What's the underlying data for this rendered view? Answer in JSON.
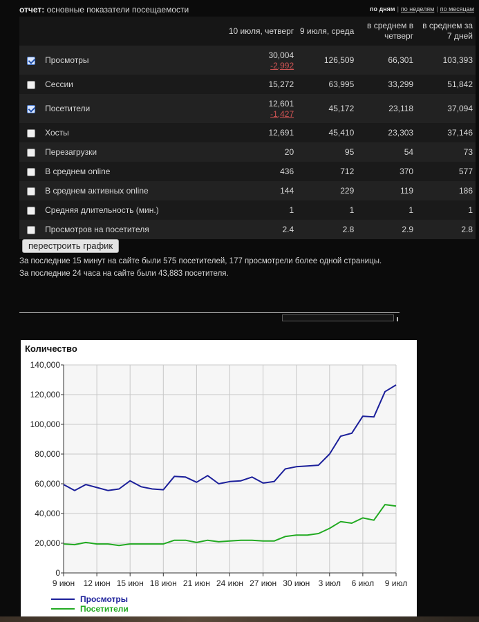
{
  "header": {
    "report_label": "отчет:",
    "report_title": "основные показатели посещаемости",
    "periods": [
      {
        "label": "по дням",
        "current": true
      },
      {
        "label": "по неделям",
        "current": false
      },
      {
        "label": "по месяцам",
        "current": false
      }
    ]
  },
  "table": {
    "columns": [
      "10 июля, четверг",
      "9 июля, среда",
      "в среднем в четверг",
      "в среднем за 7 дней"
    ],
    "rows": [
      {
        "label": "Просмотры",
        "checked": true,
        "values": [
          "30,004",
          "126,509",
          "66,301",
          "103,393"
        ],
        "delta": "-2,992"
      },
      {
        "label": "Сессии",
        "checked": false,
        "values": [
          "15,272",
          "63,995",
          "33,299",
          "51,842"
        ]
      },
      {
        "label": "Посетители",
        "checked": true,
        "values": [
          "12,601",
          "45,172",
          "23,118",
          "37,094"
        ],
        "delta": "-1,427"
      },
      {
        "label": "Хосты",
        "checked": false,
        "values": [
          "12,691",
          "45,410",
          "23,303",
          "37,146"
        ]
      },
      {
        "label": "Перезагрузки",
        "checked": false,
        "values": [
          "20",
          "95",
          "54",
          "73"
        ]
      },
      {
        "label": "В среднем online",
        "checked": false,
        "values": [
          "436",
          "712",
          "370",
          "577"
        ]
      },
      {
        "label": "В среднем активных online",
        "checked": false,
        "values": [
          "144",
          "229",
          "119",
          "186"
        ]
      },
      {
        "label": "Средняя длительность (мин.)",
        "checked": false,
        "values": [
          "1",
          "1",
          "1",
          "1"
        ]
      },
      {
        "label": "Просмотров на посетителя",
        "checked": false,
        "values": [
          "2.4",
          "2.8",
          "2.9",
          "2.8"
        ]
      }
    ]
  },
  "rebuild_label": "перестроить график",
  "info": {
    "line1": "За последние 15 минут на сайте были 575 посетителей, 177 просмотрели более одной страницы.",
    "line2": "За последние 24 часа на сайте были 43,883 посетителя."
  },
  "chart_data": {
    "type": "line",
    "title": "Количество",
    "ylim": [
      0,
      140000
    ],
    "yticks": [
      0,
      20000,
      40000,
      60000,
      80000,
      100000,
      120000,
      140000
    ],
    "ytick_labels": [
      "0",
      "20,000",
      "40,000",
      "60,000",
      "80,000",
      "100,000",
      "120,000",
      "140,000"
    ],
    "x_tick_labels": [
      "9 июн",
      "12 июн",
      "15 июн",
      "18 июн",
      "21 июн",
      "24 июн",
      "27 июн",
      "30 июн",
      "3 июл",
      "6 июл",
      "9 июл"
    ],
    "x_tick_every": 3,
    "grid": true,
    "legend": "bottom-left",
    "series": [
      {
        "name": "Просмотры",
        "color": "#1b1f9a",
        "values": [
          59500,
          55500,
          59500,
          57500,
          55500,
          56500,
          62000,
          58000,
          56500,
          56000,
          65000,
          64500,
          61000,
          65500,
          60000,
          61500,
          62000,
          64500,
          60500,
          61500,
          70000,
          71500,
          72000,
          72500,
          80000,
          92000,
          94000,
          105500,
          105000,
          122000,
          126500
        ]
      },
      {
        "name": "Посетители",
        "color": "#22aa22",
        "values": [
          19500,
          19000,
          20500,
          19500,
          19500,
          18500,
          19500,
          19500,
          19500,
          19500,
          22000,
          22000,
          20500,
          22000,
          21000,
          21500,
          22000,
          22000,
          21500,
          21500,
          24500,
          25500,
          25500,
          26500,
          30000,
          34500,
          33500,
          37000,
          35500,
          46000,
          45000
        ]
      }
    ]
  }
}
